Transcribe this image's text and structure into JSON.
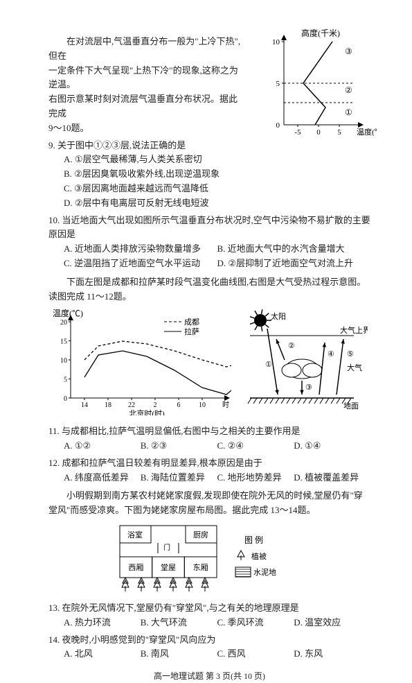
{
  "intro1": {
    "line1": "在对流层中,气温垂直分布一般为\"上冷下热\",但在",
    "line2": "一定条件下大气呈现\"上热下冷\"的现象,这称之为逆温。",
    "line3": "右图示意某时刻对流层气温垂直分布状况。据此完成",
    "line4": "9～10题。"
  },
  "chart1": {
    "ylabel": "高度(千米)",
    "xlabel": "温度(℃)",
    "ymax": 10,
    "ymid": 5,
    "ymin": 0,
    "xticks": [
      "-5",
      "0",
      "5"
    ],
    "layers": [
      "③",
      "②",
      "①"
    ],
    "poly": [
      [
        85,
        140
      ],
      [
        100,
        115
      ],
      [
        68,
        80
      ],
      [
        110,
        20
      ]
    ],
    "bg": "#ffffff",
    "stroke": "#000000"
  },
  "q9": {
    "stem": "9. 关于图中①②③层,说法正确的是",
    "A": "A. ①层空气最稀薄,与人类关系密切",
    "B": "B. ②层因臭氧吸收紫外线,出现逆温现象",
    "C": "C. ③层因离地面越来越远而气温降低",
    "D": "D. ②层中有电离层可反射无线电短波"
  },
  "q10": {
    "stem": "10. 当近地面大气出现如图所示气温垂直分布状况时,空气中污染物不易扩散的主要原因是",
    "A": "A. 近地面人类排放污染物数量增多",
    "B": "B. 近地面大气中的水汽含量增大",
    "C": "C. 逆温阻挡了近地面空气水平运动",
    "D": "D. ②层抑制了近地面空气对流上升"
  },
  "intro2": "下面左图是成都和拉萨某时段气温变化曲线图,右图是大气受热过程示意图。读图完成 11～12题。",
  "chart2": {
    "ylabel": "温度(℃)",
    "xlabel": "北京时(时)",
    "xticks": [
      "14",
      "18",
      "22",
      "2",
      "6",
      "10",
      "时"
    ],
    "yticks": [
      "0",
      "5",
      "10",
      "15",
      "20"
    ],
    "legend": [
      "成都",
      "拉萨"
    ],
    "chengdu": [
      [
        20,
        55
      ],
      [
        40,
        35
      ],
      [
        75,
        28
      ],
      [
        110,
        32
      ],
      [
        150,
        42
      ],
      [
        190,
        55
      ],
      [
        225,
        65
      ],
      [
        245,
        60
      ]
    ],
    "lasa": [
      [
        20,
        80
      ],
      [
        40,
        48
      ],
      [
        75,
        42
      ],
      [
        110,
        50
      ],
      [
        150,
        70
      ],
      [
        190,
        95
      ],
      [
        225,
        105
      ],
      [
        245,
        88
      ]
    ],
    "bg": "#ffffff",
    "stroke": "#000000"
  },
  "chart3": {
    "labels": {
      "sun": "太阳",
      "upper": "大气上界",
      "atm": "大气",
      "ground": "地面"
    },
    "arrows": [
      "①",
      "②",
      "③",
      "④",
      "⑤"
    ],
    "bg": "#ffffff",
    "stroke": "#000000"
  },
  "q11": {
    "stem": "11. 与成都相比,拉萨气温明显偏低,右图中与之相关的主要作用是",
    "A": "A. ①②",
    "B": "B. ②③",
    "C": "C. ②④",
    "D": "D. ①④"
  },
  "q12": {
    "stem": "12. 成都和拉萨气温日较差有明显差异,根本原因是由于",
    "A": "A. 纬度高低差异",
    "B": "B. 海陆位置差异",
    "C": "C. 地形地势差异",
    "D": "D. 植被覆盖差异"
  },
  "intro3": "小明假期到南方某农村姥姥家度假,发现即使在院外无风的时候,堂屋仍有\"穿堂风\"而感受凉爽。下图为姥姥家房屋布局图。据此完成 13～14题。",
  "house": {
    "rooms": [
      "浴室",
      "厨房",
      "西厢",
      "堂屋",
      "东厢"
    ],
    "door": "门",
    "legend_title": "图 例",
    "legend_items": [
      "植被",
      "水泥地"
    ],
    "tree_count": 6,
    "stroke": "#000000",
    "bg": "#ffffff"
  },
  "q13": {
    "stem": "13. 在院外无风情况下,堂屋仍有\"穿堂风\",与之有关的地理原理是",
    "A": "A. 热力环流",
    "B": "B. 大气环流",
    "C": "C. 季风环流",
    "D": "D. 温室效应"
  },
  "q14": {
    "stem": "14. 夜晚时,小明感觉到的\"穿堂风\"风向应为",
    "A": "A. 北风",
    "B": "B. 南风",
    "C": "C. 西风",
    "D": "D. 东风"
  },
  "footer": "高一地理试题  第 3 页(共 10 页)"
}
